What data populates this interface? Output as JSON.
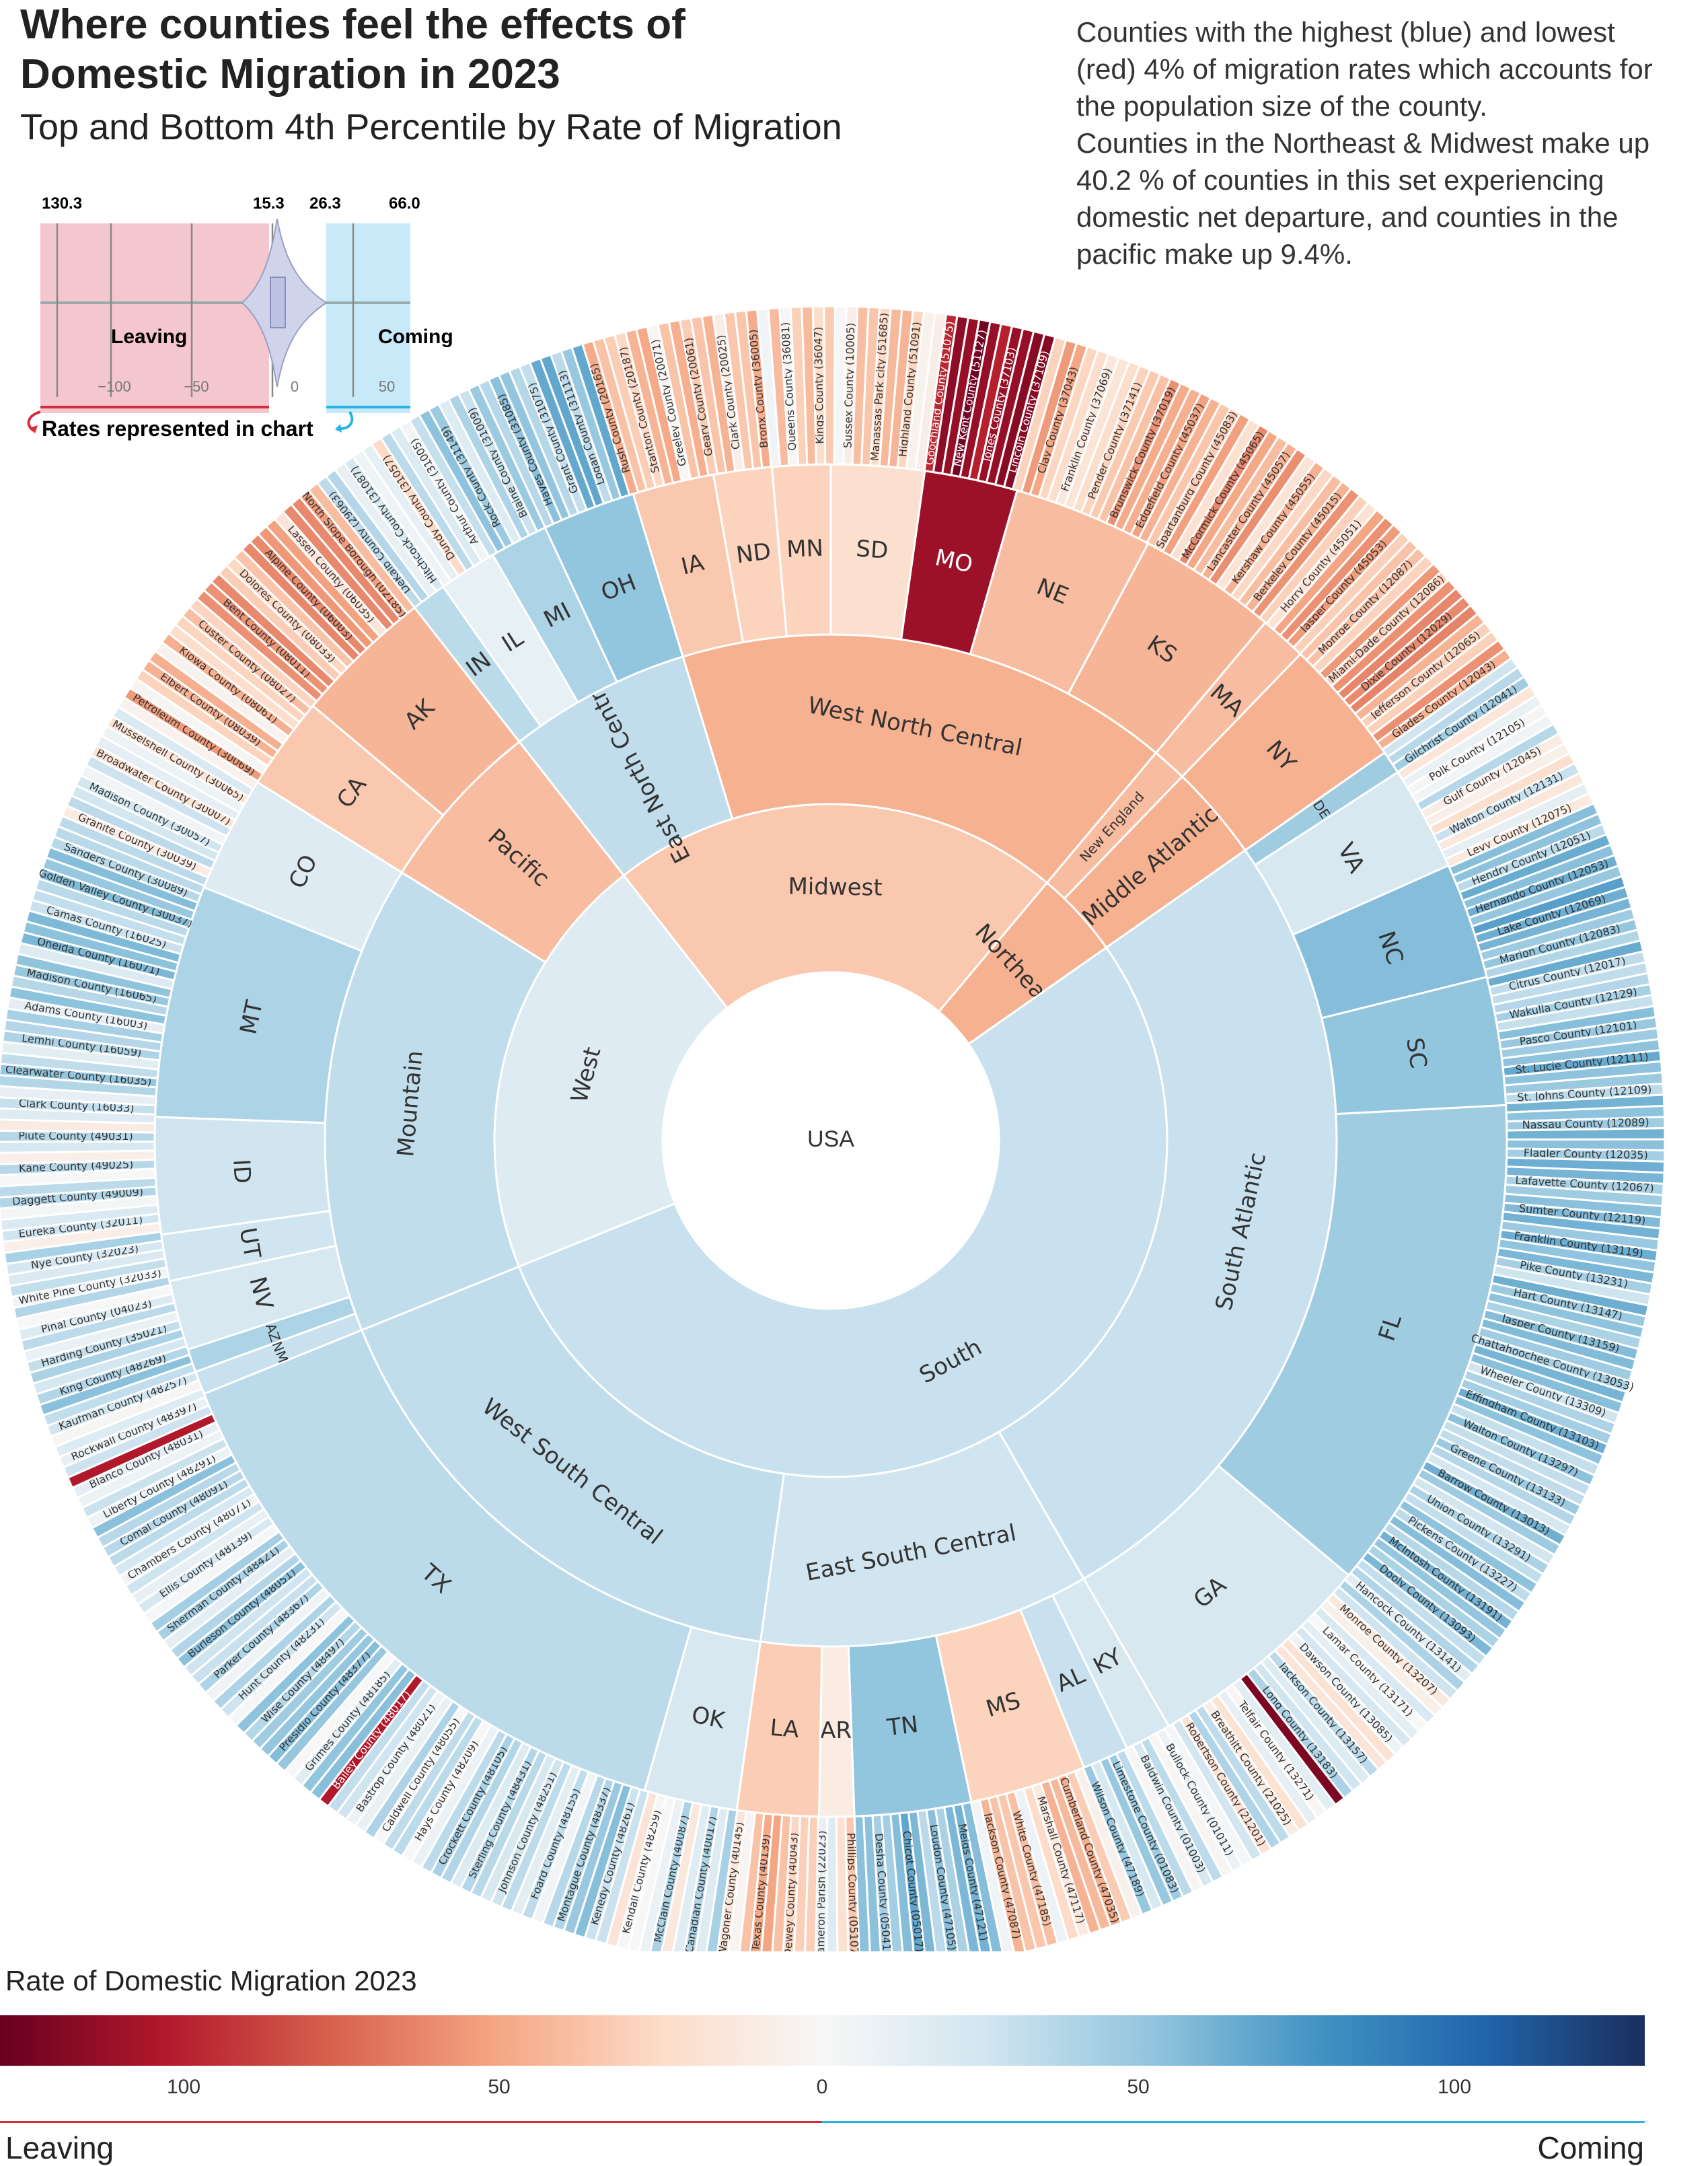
{
  "title": "Where counties feel the effects of Domestic Migration in 2023",
  "subtitle": "Top and Bottom 4th Percentile by Rate of Migration",
  "description": [
    "Counties with the highest (blue) and lowest (red) 4% of migration rates which accounts for the population size of the county.",
    "Counties in the Northeast & Midwest make up 40.2 % of counties in this set experiencing domestic net departure, and counties in the pacific make up 9.4%."
  ],
  "mini_legend": {
    "top_values": [
      "130.3",
      "15.3",
      "26.3",
      "66.0"
    ],
    "axis_ticks": [
      "−100",
      "−50",
      "0",
      "50"
    ],
    "leaving_label": "Leaving",
    "coming_label": "Coming",
    "caption": "Rates represented in chart",
    "colors": {
      "leaving": "#f4c6cd",
      "coming": "#c7e9f8"
    }
  },
  "colorbar": {
    "title": "Rate of Domestic Migration 2023",
    "ticks": [
      "100",
      "50",
      "0",
      "50",
      "100"
    ],
    "left_label": "Leaving",
    "right_label": "Coming"
  },
  "chart_data": {
    "type": "sunburst",
    "root": "USA",
    "regions": [
      {
        "name": "Midwest",
        "rate": -20,
        "divisions": [
          {
            "name": "East North Central",
            "rate": 18,
            "states": [
              {
                "name": "IN",
                "rate": 20
              },
              {
                "name": "IL",
                "rate": 5
              },
              {
                "name": "MI",
                "rate": 25
              },
              {
                "name": "OH",
                "rate": 35
              }
            ]
          },
          {
            "name": "West North Central",
            "rate": -30,
            "states": [
              {
                "name": "IA",
                "rate": -20
              },
              {
                "name": "ND",
                "rate": -15
              },
              {
                "name": "MN",
                "rate": -15
              },
              {
                "name": "SD",
                "rate": -10
              },
              {
                "name": "MO",
                "rate": -110
              },
              {
                "name": "NE",
                "rate": -25
              },
              {
                "name": "KS",
                "rate": -28
              }
            ]
          }
        ]
      },
      {
        "name": "Northeast",
        "rate": -30,
        "divisions": [
          {
            "name": "New England",
            "rate": -25,
            "states": [
              {
                "name": "MA",
                "rate": -25
              }
            ]
          },
          {
            "name": "Middle Atlantic",
            "rate": -30,
            "states": [
              {
                "name": "NY",
                "rate": -30
              }
            ]
          }
        ]
      },
      {
        "name": "South",
        "rate": 15,
        "divisions": [
          {
            "name": "South Atlantic",
            "rate": 15,
            "states": [
              {
                "name": "DE",
                "rate": 30
              },
              {
                "name": "VA",
                "rate": 10
              },
              {
                "name": "NC",
                "rate": 40
              },
              {
                "name": "SC",
                "rate": 35
              },
              {
                "name": "FL",
                "rate": 30
              },
              {
                "name": "GA",
                "rate": 10
              }
            ]
          },
          {
            "name": "East South Central",
            "rate": 12,
            "states": [
              {
                "name": "KY",
                "rate": 10
              },
              {
                "name": "AL",
                "rate": 15
              },
              {
                "name": "MS",
                "rate": -15
              },
              {
                "name": "TN",
                "rate": 35
              },
              {
                "name": "AR",
                "rate": -5
              },
              {
                "name": "LA",
                "rate": -18
              }
            ]
          },
          {
            "name": "West South Central",
            "rate": 18,
            "states": [
              {
                "name": "OK",
                "rate": 10
              },
              {
                "name": "TX",
                "rate": 20
              }
            ]
          }
        ]
      },
      {
        "name": "West",
        "rate": 8,
        "divisions": [
          {
            "name": "Mountain",
            "rate": 18,
            "states": [
              {
                "name": "NM",
                "rate": 15
              },
              {
                "name": "AZ",
                "rate": 25
              },
              {
                "name": "NV",
                "rate": 10
              },
              {
                "name": "UT",
                "rate": 12
              },
              {
                "name": "ID",
                "rate": 12
              },
              {
                "name": "MT",
                "rate": 25
              },
              {
                "name": "CO",
                "rate": 8
              }
            ]
          },
          {
            "name": "Pacific",
            "rate": -25,
            "states": [
              {
                "name": "CA",
                "rate": -20
              },
              {
                "name": "AK",
                "rate": -28
              }
            ]
          }
        ]
      }
    ],
    "labeled_counties": [
      "DeKalb County (29063)",
      "Hitchcock County (31087)",
      "Dundy County (31057)",
      "Arthur County (31005)",
      "Rock County (31149)",
      "Blaine County (31009)",
      "Hayes County (31085)",
      "Grant County (31075)",
      "Logan County (31113)",
      "Rush County (20165)",
      "Stanton County (20187)",
      "Greeley County (20071)",
      "Geary County (20061)",
      "Clark County (20025)",
      "Bronx County (36005)",
      "Queens County (36081)",
      "Kings County (36047)",
      "Sussex County (10005)",
      "Manassas Park city (51685)",
      "Highland County (51091)",
      "Goochland County (51075)",
      "New Kent County (51127)",
      "Jones County (37103)",
      "Lincoln County (37109)",
      "Clay County (37043)",
      "Franklin County (37069)",
      "Pender County (37141)",
      "Brunswick County (37019)",
      "Edgefield County (45037)",
      "Spartanburg County (45083)",
      "McCormick County (45065)",
      "Lancaster County (45057)",
      "Kershaw County (45055)",
      "Berkeley County (45015)",
      "Horry County (45051)",
      "Jasper County (45053)",
      "Monroe County (12087)",
      "Miami-Dade County (12086)",
      "Dixie County (12029)",
      "Jefferson County (12065)",
      "Glades County (12043)",
      "Gilchrist County (12041)",
      "Polk County (12105)",
      "Gulf County (12045)",
      "Walton County (12131)",
      "Levy County (12075)",
      "Hendry County (12051)",
      "Hernando County (12053)",
      "Lake County (12069)",
      "Marion County (12083)",
      "Citrus County (12017)",
      "Wakulla County (12129)",
      "Pasco County (12101)",
      "St. Lucie County (12111)",
      "St. Johns County (12109)",
      "Nassau County (12089)",
      "Flagler County (12035)",
      "Lafayette County (12067)",
      "Sumter County (12119)",
      "Franklin County (13119)",
      "Pike County (13231)",
      "Hart County (13147)",
      "Jasper County (13159)",
      "Chattahoochee County (13053)",
      "Wheeler County (13309)",
      "Effingham County (13103)",
      "Walton County (13297)",
      "Greene County (13133)",
      "Barrow County (13013)",
      "Union County (13291)",
      "Pickens County (13227)",
      "McIntosh County (13191)",
      "Dooly County (13093)",
      "Hancock County (13141)",
      "Monroe County (13207)",
      "Lamar County (13171)",
      "Dawson County (13085)",
      "Jackson County (13157)",
      "Long County (13183)",
      "Telfair County (13271)",
      "Breathitt County (21025)",
      "Robertson County (21201)",
      "Bullock County (01011)",
      "Baldwin County (01003)",
      "Limestone County (01083)",
      "Wilson County (47189)",
      "Cumberland County (47035)",
      "Marshall County (47117)",
      "White County (47185)",
      "Jackson County (47087)",
      "Meigs County (47121)",
      "Loudon County (47105)",
      "Chicot County (05017)",
      "Desha County (05041)",
      "Phillips County (05107)",
      "Cameron Parish (22023)",
      "Dewey County (40043)",
      "Texas County (40139)",
      "Wagoner County (40145)",
      "Canadian County (40017)",
      "McClain County (40087)",
      "Kendall County (48259)",
      "Kenedy County (48261)",
      "Montague County (48337)",
      "Foard County (48155)",
      "Johnson County (48251)",
      "Sterling County (48431)",
      "Crockett County (48105)",
      "Hays County (48209)",
      "Caldwell County (48055)",
      "Bastrop County (48021)",
      "Bailey County (48017)",
      "Grimes County (48185)",
      "Presidio County (48377)",
      "Wise County (48497)",
      "Hunt County (48231)",
      "Parker County (48367)",
      "Burleson County (48051)",
      "Sherman County (48421)",
      "Ellis County (48139)",
      "Chambers County (48071)",
      "Comal County (48091)",
      "Liberty County (48291)",
      "Blanco County (48031)",
      "Rockwall County (48397)",
      "Kaufman County (48257)",
      "King County (48269)",
      "Harding County (35021)",
      "Pinal County (04023)",
      "White Pine County (32033)",
      "Nye County (32023)",
      "Eureka County (32011)",
      "Daggett County (49009)",
      "Kane County (49025)",
      "Piute County (49031)",
      "Clark County (16033)",
      "Clearwater County (16035)",
      "Lemhi County (16059)",
      "Adams County (16003)",
      "Madison County (16065)",
      "Oneida County (16071)",
      "Camas County (16025)",
      "Golden Valley County (30037)",
      "Sanders County (30089)",
      "Granite County (30039)",
      "Madison County (30057)",
      "Broadwater County (30007)",
      "Musselshell County (30065)",
      "Petroleum County (30069)",
      "Elbert County (08039)",
      "Kiowa County (08061)",
      "Custer County (08027)",
      "Bent County (08011)",
      "Dolores County (08033)",
      "Alpine County (06003)",
      "Lassen County (06035)",
      "North Slope Borough (02185)",
      "Dillingham Census Area (02070)",
      "Bristol Bay Borough (02060)",
      "Kusilvak Census Area (02158)",
      "Hancock County (18055)",
      "Oscoda County (26135)",
      "Luce County (26095)",
      "Athens County (39009)",
      "Union County (39159)",
      "Henry County (19087)",
      "Nobles County (27105)",
      "Jackson County (46075)",
      "Lawrence County (46081)",
      "Ziebach County (46137)",
      "Hickory County (29085)"
    ]
  }
}
